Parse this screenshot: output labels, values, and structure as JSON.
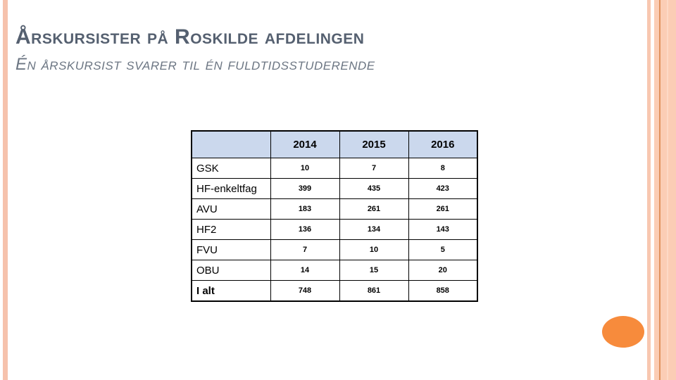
{
  "slide": {
    "title": "Årskursister på Roskilde afdelingen",
    "subtitle": "Én årskursist svarer til én fuldtidsstuderende"
  },
  "table": {
    "columns": [
      "2014",
      "2015",
      "2016"
    ],
    "rows": [
      {
        "label": "GSK",
        "values": [
          "10",
          "7",
          "8"
        ]
      },
      {
        "label": "HF-enkeltfag",
        "values": [
          "399",
          "435",
          "423"
        ]
      },
      {
        "label": "AVU",
        "values": [
          "183",
          "261",
          "261"
        ]
      },
      {
        "label": "HF2",
        "values": [
          "136",
          "134",
          "143"
        ]
      },
      {
        "label": "FVU",
        "values": [
          "7",
          "10",
          "5"
        ]
      },
      {
        "label": "OBU",
        "values": [
          "14",
          "15",
          "20"
        ]
      },
      {
        "label": "I alt",
        "values": [
          "748",
          "861",
          "858"
        ]
      }
    ]
  },
  "colors": {
    "table_header_fill": "#CBD8ED",
    "title_text": "#556070",
    "subtitle_text": "#6C7683",
    "accent_stripe_light": "#FBCDB5",
    "accent_stripe_medium": "#F6C2AC",
    "accent_stripe_dark": "#E0935F",
    "ellipse_fill": "#F78B3C"
  }
}
